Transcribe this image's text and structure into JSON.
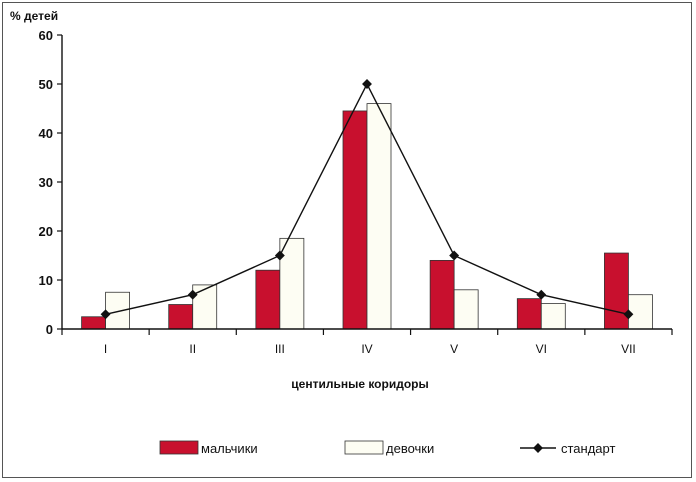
{
  "chart_data": {
    "type": "bar",
    "ylabel": "% детей",
    "xlabel": "центильные коридоры",
    "ylim": [
      0,
      60
    ],
    "yticks": [
      0,
      10,
      20,
      30,
      40,
      50,
      60
    ],
    "categories": [
      "I",
      "II",
      "III",
      "IV",
      "V",
      "VI",
      "VII"
    ],
    "series": [
      {
        "name": "мальчики",
        "kind": "bar",
        "color": "#c8102e",
        "values": [
          2.5,
          5,
          12,
          44.5,
          14,
          6.2,
          15.5
        ]
      },
      {
        "name": "девочки",
        "kind": "bar",
        "color": "#fdfdf3",
        "values": [
          7.5,
          9,
          18.5,
          46,
          8,
          5.2,
          7
        ]
      },
      {
        "name": "стандарт",
        "kind": "line",
        "color": "#111111",
        "values": [
          3,
          7,
          15,
          50,
          15,
          7,
          3
        ]
      }
    ],
    "legend_position": "bottom"
  }
}
